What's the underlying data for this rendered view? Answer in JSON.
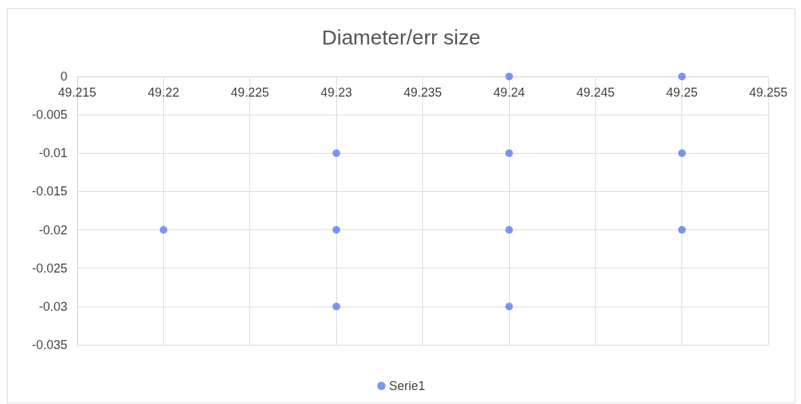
{
  "chart_data": {
    "type": "scatter",
    "title": "Diameter/err size",
    "xlim": [
      49.215,
      49.255
    ],
    "xticks": [
      49.215,
      49.22,
      49.225,
      49.23,
      49.235,
      49.24,
      49.245,
      49.25,
      49.255
    ],
    "ylim": [
      -0.035,
      0
    ],
    "yticks": [
      -0.035,
      -0.03,
      -0.025,
      -0.02,
      -0.015,
      -0.01,
      -0.005,
      0
    ],
    "series": [
      {
        "name": "Serie1",
        "color": "#5b7cf2",
        "x": [
          49.22,
          49.23,
          49.23,
          49.23,
          49.24,
          49.24,
          49.24,
          49.24,
          49.25,
          49.25,
          49.25
        ],
        "values": [
          -0.02,
          -0.01,
          -0.02,
          -0.03,
          0,
          -0.01,
          -0.02,
          -0.03,
          0,
          -0.01,
          -0.02
        ]
      }
    ],
    "grid": true,
    "legend": "bottom",
    "marker": "circle"
  }
}
